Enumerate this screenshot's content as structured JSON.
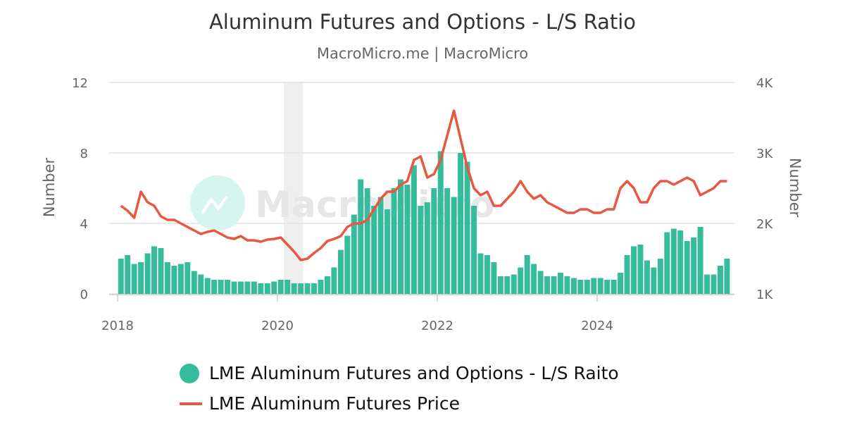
{
  "chart_data": {
    "type": "bar+line",
    "title": "Aluminum Futures and Options - L/S Ratio",
    "subtitle": "MacroMicro.me | MacroMicro",
    "watermark": "MacroMicro",
    "xlabel": "",
    "ylabel_left": "Number",
    "ylabel_right": "Number",
    "ylim_left": [
      0,
      12
    ],
    "ylim_right": [
      1000,
      4000
    ],
    "xlim": [
      2017.95,
      2025.75
    ],
    "yticks_left": [
      "0",
      "4",
      "8",
      "12"
    ],
    "yticks_left_values": [
      0,
      4,
      8,
      12
    ],
    "yticks_right": [
      "1K",
      "2K",
      "3K",
      "4K"
    ],
    "yticks_right_values": [
      1000,
      2000,
      3000,
      4000
    ],
    "xticks": [
      "2018",
      "2020",
      "2022",
      "2024"
    ],
    "xticks_values": [
      2018,
      2020,
      2022,
      2024
    ],
    "shaded_region": [
      2020.08,
      2020.32
    ],
    "grid": true,
    "legend_position": "bottom",
    "x_start": 2018.0,
    "x_step_months": 1,
    "series": [
      {
        "name": "LME Aluminum Futures and Options - L/S Raito",
        "type": "bar",
        "axis": "left",
        "color": "#36bc9b",
        "values": [
          2.0,
          2.2,
          1.7,
          1.8,
          2.3,
          2.7,
          2.6,
          1.8,
          1.6,
          1.7,
          1.8,
          1.3,
          1.1,
          0.9,
          0.8,
          0.8,
          0.8,
          0.7,
          0.7,
          0.7,
          0.7,
          0.6,
          0.6,
          0.7,
          0.8,
          0.8,
          0.6,
          0.6,
          0.6,
          0.6,
          0.8,
          1.0,
          1.5,
          2.5,
          3.3,
          4.5,
          6.5,
          6.0,
          5.0,
          5.5,
          4.8,
          6.0,
          6.5,
          6.2,
          7.3,
          5.0,
          5.2,
          6.0,
          8.1,
          6.0,
          5.5,
          8.0,
          7.5,
          5.0,
          2.3,
          2.2,
          1.8,
          1.0,
          1.0,
          1.1,
          1.5,
          2.2,
          1.7,
          1.3,
          1.0,
          1.0,
          1.2,
          1.0,
          0.9,
          0.8,
          0.8,
          0.9,
          0.9,
          0.8,
          0.8,
          1.2,
          2.2,
          2.7,
          2.8,
          1.9,
          1.5,
          2.0,
          3.5,
          3.7,
          3.6,
          3.0,
          3.2,
          3.8,
          1.1,
          1.1,
          1.6,
          2.0
        ]
      },
      {
        "name": "LME Aluminum Futures Price",
        "type": "line",
        "axis": "right",
        "color": "#e8573f",
        "values": [
          2250,
          2180,
          2080,
          2450,
          2300,
          2250,
          2100,
          2050,
          2050,
          2000,
          1950,
          1900,
          1850,
          1880,
          1900,
          1850,
          1800,
          1780,
          1820,
          1760,
          1760,
          1740,
          1770,
          1780,
          1800,
          1700,
          1600,
          1480,
          1500,
          1580,
          1650,
          1750,
          1780,
          1820,
          1950,
          2000,
          2000,
          2050,
          2200,
          2350,
          2450,
          2450,
          2550,
          2600,
          2900,
          2950,
          2650,
          2700,
          2900,
          3250,
          3600,
          3200,
          2800,
          2500,
          2400,
          2450,
          2250,
          2250,
          2350,
          2450,
          2600,
          2450,
          2350,
          2400,
          2300,
          2250,
          2200,
          2150,
          2150,
          2200,
          2200,
          2150,
          2150,
          2200,
          2200,
          2500,
          2600,
          2500,
          2300,
          2300,
          2500,
          2600,
          2600,
          2550,
          2600,
          2650,
          2600,
          2400,
          2450,
          2500,
          2600,
          2600
        ]
      }
    ]
  }
}
